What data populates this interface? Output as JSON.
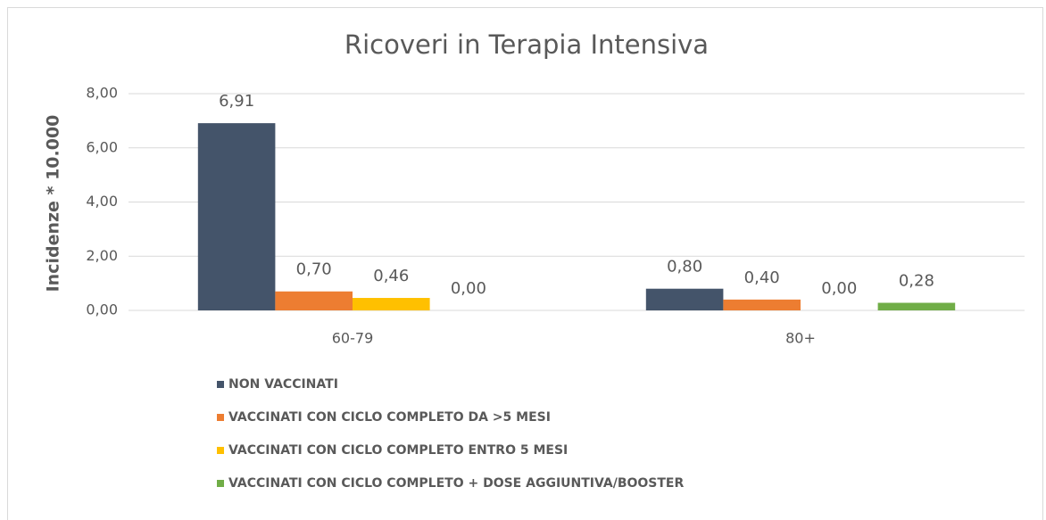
{
  "chart_data": {
    "type": "bar",
    "title": "Ricoveri in Terapia Intensiva",
    "y_label": "Incidenze * 10.000",
    "categories": [
      "60-79",
      "80+"
    ],
    "series": [
      {
        "name": "NON VACCINATI",
        "color": "#44546a",
        "values": [
          6.91,
          0.8
        ],
        "value_labels": [
          "6,91",
          "0,80"
        ]
      },
      {
        "name": "VACCINATI CON CICLO COMPLETO DA >5 MESI",
        "color": "#ed7d31",
        "values": [
          0.7,
          0.4
        ],
        "value_labels": [
          "0,70",
          "0,40"
        ]
      },
      {
        "name": "VACCINATI CON CICLO COMPLETO ENTRO 5 MESI",
        "color": "#ffc000",
        "values": [
          0.46,
          0.0
        ],
        "value_labels": [
          "0,46",
          "0,00"
        ]
      },
      {
        "name": "VACCINATI CON CICLO COMPLETO + DOSE AGGIUNTIVA/BOOSTER",
        "color": "#70ad47",
        "values": [
          0.0,
          0.28
        ],
        "value_labels": [
          "0,00",
          "0,28"
        ]
      }
    ],
    "ylim": [
      0,
      8
    ],
    "yticks": [
      {
        "value": 0,
        "label": "0,00"
      },
      {
        "value": 2,
        "label": "2,00"
      },
      {
        "value": 4,
        "label": "4,00"
      },
      {
        "value": 6,
        "label": "6,00"
      },
      {
        "value": 8,
        "label": "8,00"
      }
    ],
    "grid": true,
    "legend": "bottom"
  }
}
